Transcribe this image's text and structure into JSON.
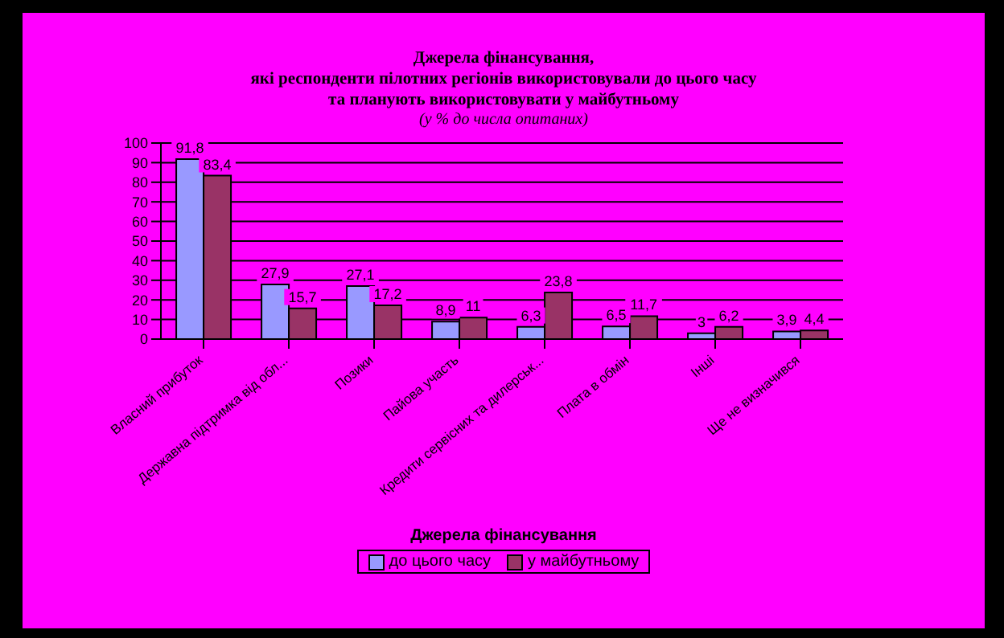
{
  "chart_data": {
    "type": "bar",
    "title": "Джерела фінансування,\nякі респонденти пілотних регіонів використовували до цього часу\nта планують використовувати у майбутньому",
    "subtitle": "(у % до числа опитаних)",
    "xlabel": "Джерела фінансування",
    "categories": [
      "Власний прибуток",
      "Державна підтримка від обл...",
      "Позики",
      "Пайова участь",
      "Кредити сервісних та дилерськ...",
      "Плата в обмін",
      "Інші",
      "Ще не визначився"
    ],
    "series": [
      {
        "name": "до цього часу",
        "color": "#9999ff",
        "values": [
          91.8,
          27.9,
          27.1,
          8.9,
          6.3,
          6.5,
          3,
          3.9
        ],
        "value_labels": [
          "91,8",
          "27,9",
          "27,1",
          "8,9",
          "6,3",
          "6,5",
          "3",
          "3,9"
        ]
      },
      {
        "name": "у майбутньому",
        "color": "#993366",
        "values": [
          83.4,
          15.7,
          17.2,
          11,
          23.8,
          11.7,
          6.2,
          4.4
        ],
        "value_labels": [
          "83,4",
          "15,7",
          "17,2",
          "11",
          "23,8",
          "11,7",
          "6,2",
          "4,4"
        ]
      }
    ],
    "ylim": [
      0,
      100
    ],
    "yticks": [
      0,
      10,
      20,
      30,
      40,
      50,
      60,
      70,
      80,
      90,
      100
    ],
    "grid": "y",
    "legend": "bottom"
  }
}
